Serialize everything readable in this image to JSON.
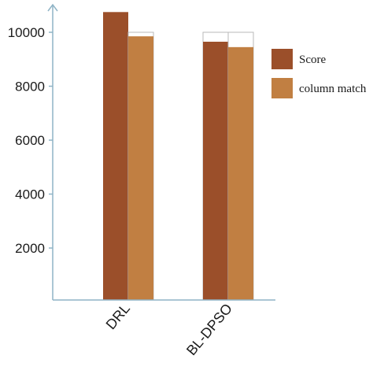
{
  "chart_data": {
    "type": "bar",
    "categories": [
      "DRL",
      "BL-DPSO"
    ],
    "series": [
      {
        "name": "Score",
        "values": [
          10750,
          9650
        ],
        "color": "#9b4f2a"
      },
      {
        "name": "column match",
        "values": [
          9850,
          9450
        ],
        "color": "#c17f42"
      }
    ],
    "outline_values": [
      [
        10750,
        10000
      ],
      [
        10000,
        10000
      ]
    ],
    "yticks": [
      2000,
      4000,
      6000,
      8000,
      10000
    ],
    "ylim": [
      0,
      11000
    ],
    "legend_position": "right",
    "grid": false,
    "axis_color": "#8fb4c6"
  }
}
